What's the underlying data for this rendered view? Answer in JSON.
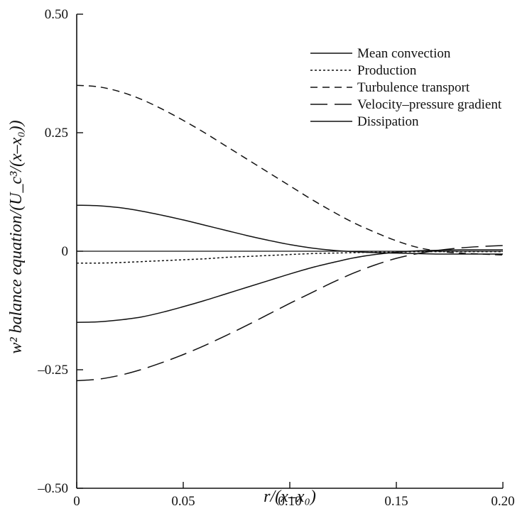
{
  "chart_data": {
    "type": "line",
    "title": "",
    "xlabel": "r/(x–x₀)",
    "ylabel": "w² balance equation/(U_c³/(x–x₀))",
    "xlim": [
      0,
      0.2
    ],
    "ylim": [
      -0.5,
      0.5
    ],
    "xticks": [
      0,
      0.05,
      0.1,
      0.15,
      0.2
    ],
    "xtick_labels": [
      "0",
      "0.05",
      "0.10",
      "0.15",
      "0.20"
    ],
    "yticks": [
      -0.5,
      -0.25,
      0,
      0.25,
      0.5
    ],
    "ytick_labels": [
      "–0.50",
      "–0.25",
      "0",
      "0.25",
      "0.50"
    ],
    "grid": false,
    "legend_position": "top-right",
    "series": [
      {
        "name": "Mean convection",
        "dash": "solid",
        "x": [
          0,
          0.01,
          0.02,
          0.03,
          0.04,
          0.05,
          0.06,
          0.07,
          0.08,
          0.09,
          0.1,
          0.11,
          0.12,
          0.13,
          0.14,
          0.15,
          0.16,
          0.17,
          0.18,
          0.19,
          0.2
        ],
        "y": [
          0.097,
          0.096,
          0.092,
          0.085,
          0.076,
          0.066,
          0.055,
          0.044,
          0.033,
          0.023,
          0.014,
          0.007,
          0.002,
          -0.001,
          -0.003,
          -0.004,
          -0.005,
          -0.006,
          -0.006,
          -0.006,
          -0.006
        ]
      },
      {
        "name": "Production",
        "dash": "dotted",
        "x": [
          0,
          0.01,
          0.02,
          0.03,
          0.04,
          0.05,
          0.06,
          0.07,
          0.08,
          0.09,
          0.1,
          0.11,
          0.12,
          0.13,
          0.14,
          0.15,
          0.16,
          0.17,
          0.18,
          0.19,
          0.2
        ],
        "y": [
          -0.025,
          -0.025,
          -0.024,
          -0.022,
          -0.02,
          -0.018,
          -0.016,
          -0.013,
          -0.011,
          -0.009,
          -0.007,
          -0.005,
          -0.004,
          -0.003,
          -0.002,
          -0.002,
          -0.001,
          -0.001,
          -0.001,
          -0.001,
          -0.001
        ]
      },
      {
        "name": "Turbulence transport",
        "dash": "dashed",
        "x": [
          0,
          0.01,
          0.02,
          0.03,
          0.04,
          0.05,
          0.06,
          0.07,
          0.08,
          0.09,
          0.1,
          0.11,
          0.12,
          0.13,
          0.14,
          0.15,
          0.16,
          0.17,
          0.18,
          0.19,
          0.2
        ],
        "y": [
          0.35,
          0.347,
          0.337,
          0.321,
          0.3,
          0.276,
          0.25,
          0.222,
          0.194,
          0.166,
          0.138,
          0.11,
          0.084,
          0.06,
          0.04,
          0.022,
          0.008,
          0.0,
          -0.004,
          -0.006,
          -0.008
        ]
      },
      {
        "name": "Velocity–pressure gradient",
        "dash": "long-dash",
        "x": [
          0,
          0.01,
          0.02,
          0.03,
          0.04,
          0.05,
          0.06,
          0.07,
          0.08,
          0.09,
          0.1,
          0.11,
          0.12,
          0.13,
          0.14,
          0.15,
          0.16,
          0.17,
          0.18,
          0.19,
          0.2
        ],
        "y": [
          -0.273,
          -0.27,
          -0.262,
          -0.25,
          -0.235,
          -0.218,
          -0.199,
          -0.178,
          -0.156,
          -0.133,
          -0.11,
          -0.088,
          -0.066,
          -0.046,
          -0.029,
          -0.015,
          -0.005,
          0.002,
          0.007,
          0.01,
          0.012
        ]
      },
      {
        "name": "Dissipation",
        "dash": "solid",
        "x": [
          0,
          0.01,
          0.02,
          0.03,
          0.04,
          0.05,
          0.06,
          0.07,
          0.08,
          0.09,
          0.1,
          0.11,
          0.12,
          0.13,
          0.14,
          0.15,
          0.16,
          0.17,
          0.18,
          0.19,
          0.2
        ],
        "y": [
          -0.15,
          -0.149,
          -0.145,
          -0.139,
          -0.129,
          -0.117,
          -0.104,
          -0.09,
          -0.076,
          -0.062,
          -0.048,
          -0.035,
          -0.024,
          -0.014,
          -0.007,
          -0.002,
          0.001,
          0.002,
          0.003,
          0.003,
          0.003
        ]
      }
    ]
  }
}
